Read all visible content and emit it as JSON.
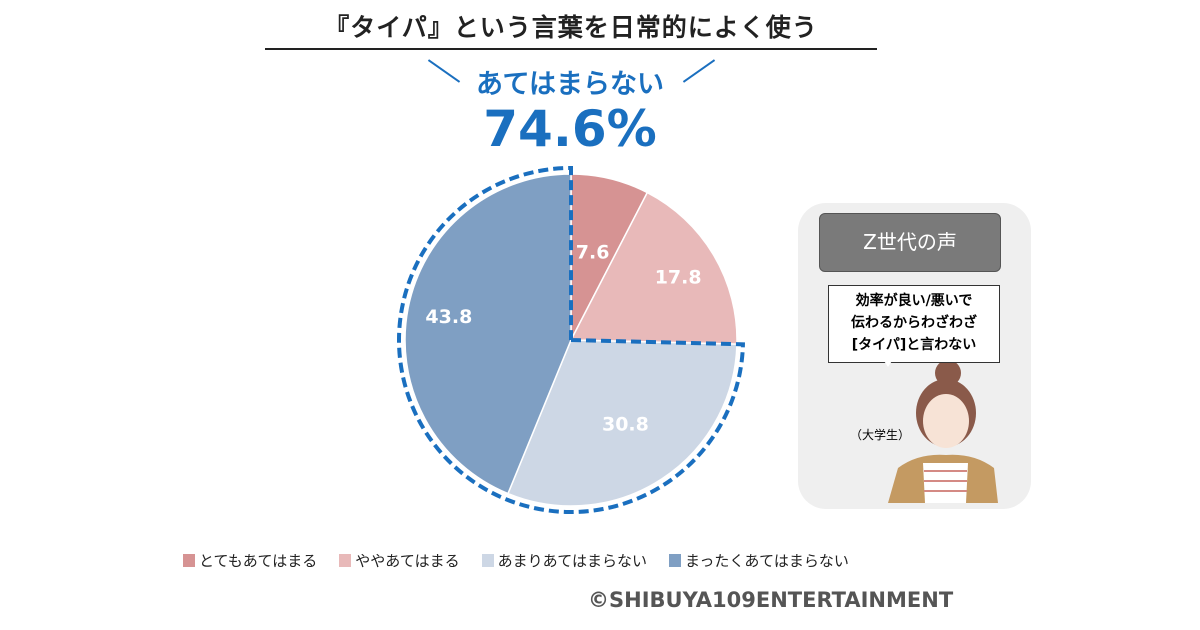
{
  "chart_data": {
    "type": "pie",
    "title": "『タイパ』という言葉を日常的によく使う",
    "categories": [
      "とてもあてはまる",
      "ややあてはまる",
      "あまりあてはまらない",
      "まったくあてはまらない"
    ],
    "values": [
      7.6,
      17.8,
      30.8,
      43.8
    ],
    "value_labels": [
      "7.6",
      "17.8",
      "30.8",
      "43.8"
    ],
    "colors": [
      "#d69393",
      "#e8b9b9",
      "#cdd7e5",
      "#7f9fc3"
    ],
    "highlight": {
      "label": "あてはまらない",
      "value": "74.6%",
      "color": "#1a6fbf"
    },
    "legend_position": "bottom"
  },
  "panel": {
    "header": "Z世代の声",
    "quote": [
      "効率が良い/悪いで",
      "伝わるからわざわざ",
      "[タイパ]と言わない"
    ],
    "speaker": "（大学生）"
  },
  "copyright": "©SHIBUYA109ENTERTAINMENT"
}
